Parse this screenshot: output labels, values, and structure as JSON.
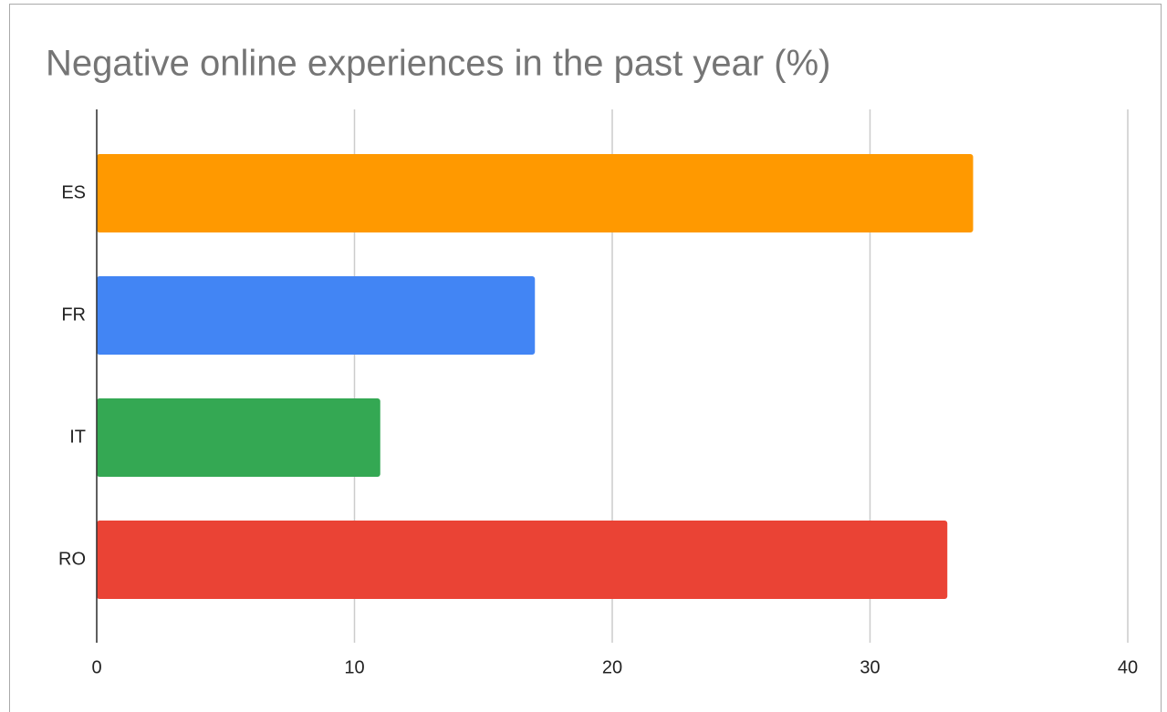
{
  "chart_data": {
    "type": "bar",
    "orientation": "horizontal",
    "title": "Negative online experiences in the past year (%)",
    "categories": [
      "ES",
      "FR",
      "IT",
      "RO"
    ],
    "values": [
      34,
      17,
      11,
      33
    ],
    "colors": [
      "#ff9900",
      "#4285f4",
      "#34a853",
      "#ea4335"
    ],
    "xlim": [
      0,
      40
    ],
    "xticks": [
      0,
      10,
      20,
      30,
      40
    ],
    "grid": true
  }
}
